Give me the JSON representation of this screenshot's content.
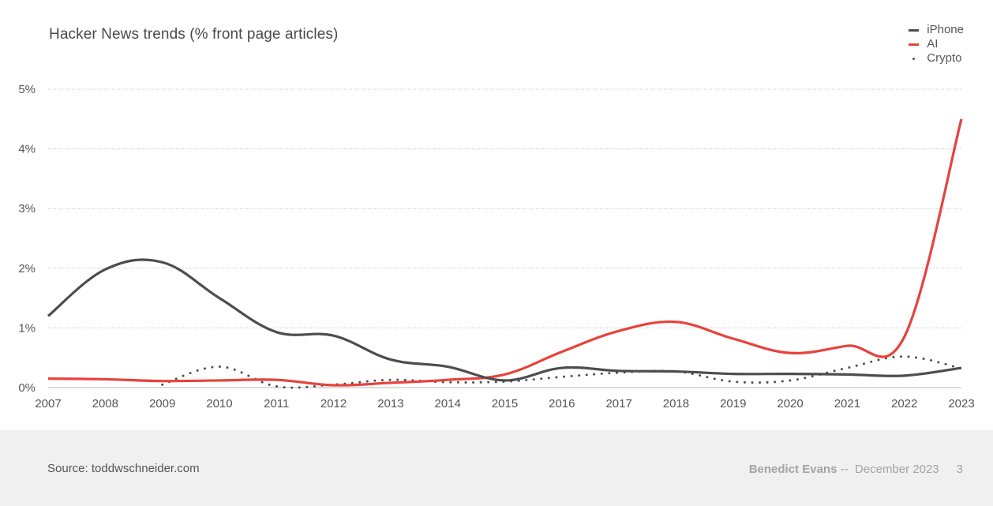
{
  "chart_data": {
    "type": "line",
    "title": "Hacker News trends (% front page articles)",
    "xlabel": "",
    "ylabel": "",
    "x": [
      2007,
      2008,
      2009,
      2010,
      2011,
      2012,
      2013,
      2014,
      2015,
      2016,
      2017,
      2018,
      2019,
      2020,
      2021,
      2022,
      2023
    ],
    "x_tick_labels": [
      "2007",
      "2008",
      "2009",
      "2010",
      "2011",
      "2012",
      "2013",
      "2014",
      "2015",
      "2016",
      "2017",
      "2018",
      "2019",
      "2020",
      "2021",
      "2022",
      "2023"
    ],
    "ylim": [
      0,
      5
    ],
    "y_ticks": [
      0,
      1,
      2,
      3,
      4,
      5
    ],
    "y_tick_labels": [
      "0%",
      "1%",
      "2%",
      "3%",
      "4%",
      "5%"
    ],
    "grid": "horizontal-dotted",
    "legend_position": "top-right",
    "series": [
      {
        "name": "iPhone",
        "color": "#4d4d4d",
        "style": "solid",
        "values": [
          1.2,
          1.98,
          2.1,
          1.5,
          0.93,
          0.87,
          0.47,
          0.35,
          0.12,
          0.33,
          0.28,
          0.27,
          0.23,
          0.23,
          0.22,
          0.2,
          0.33
        ]
      },
      {
        "name": "AI",
        "color": "#e8423b",
        "style": "solid",
        "values": [
          0.15,
          0.14,
          0.11,
          0.12,
          0.13,
          0.04,
          0.08,
          0.13,
          0.22,
          0.6,
          0.95,
          1.1,
          0.82,
          0.58,
          0.7,
          0.85,
          4.5
        ]
      },
      {
        "name": "Crypto",
        "color": "#4d4d4d",
        "style": "dotted",
        "values": [
          null,
          null,
          0.05,
          0.35,
          0.02,
          0.05,
          0.13,
          0.09,
          0.1,
          0.18,
          0.25,
          0.27,
          0.1,
          0.12,
          0.33,
          0.52,
          0.32
        ]
      }
    ]
  },
  "footer": {
    "source": "Source: toddwschneider.com",
    "author": "Benedict Evans",
    "separator": " --  ",
    "date": "December 2023",
    "page": "3"
  }
}
